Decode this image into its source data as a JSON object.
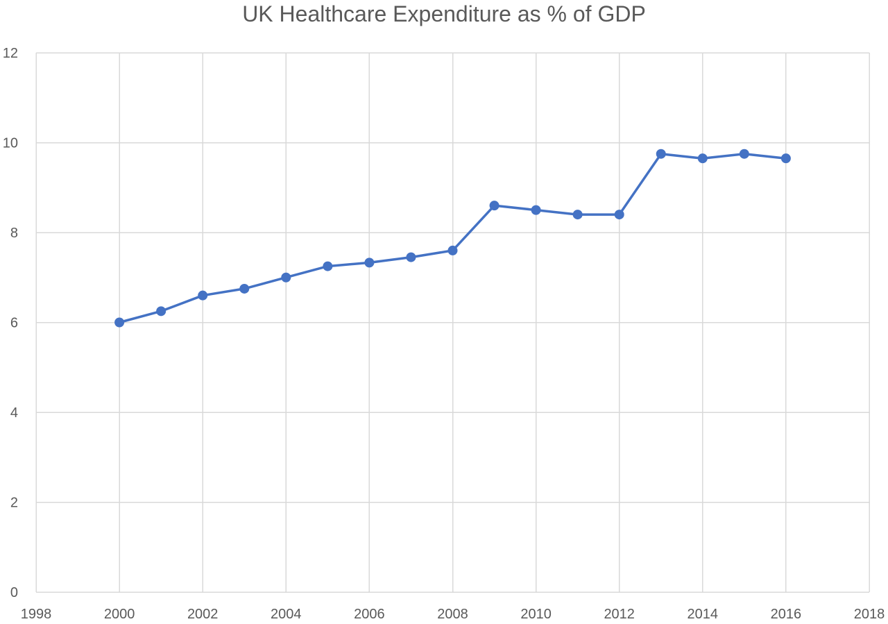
{
  "chart_data": {
    "type": "scatter",
    "title": "UK Healthcare Expenditure as % of GDP",
    "xlabel": "",
    "ylabel": "",
    "xlim": [
      1998,
      2018
    ],
    "ylim": [
      0,
      12
    ],
    "x_ticks": [
      1998,
      2000,
      2002,
      2004,
      2006,
      2008,
      2010,
      2012,
      2014,
      2016,
      2018
    ],
    "y_ticks": [
      0,
      2,
      4,
      6,
      8,
      10,
      12
    ],
    "grid": true,
    "legend": "none",
    "line_color": "#4472c4",
    "series": [
      {
        "x": [
          2000,
          2001,
          2002,
          2003,
          2004,
          2005,
          2006,
          2007,
          2008,
          2009,
          2010,
          2011,
          2012,
          2013,
          2014,
          2015,
          2016
        ],
        "y": [
          6.0,
          6.25,
          6.6,
          6.75,
          7.0,
          7.25,
          7.33,
          7.45,
          7.6,
          8.6,
          8.5,
          8.4,
          8.4,
          9.75,
          9.65,
          9.75,
          9.65
        ]
      }
    ]
  }
}
